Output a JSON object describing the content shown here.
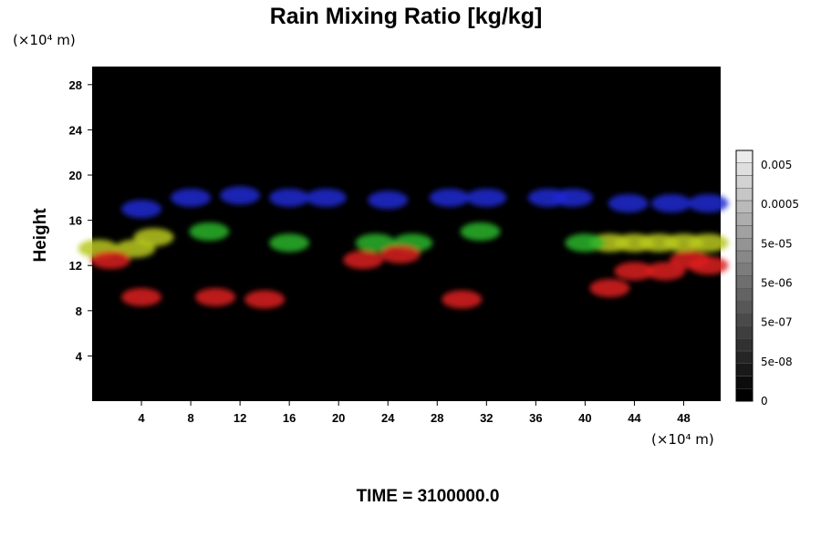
{
  "chart_data": {
    "type": "heatmap",
    "title": "Rain Mixing Ratio [kg/kg]",
    "ylabel": "Height",
    "y_unit": "(×10⁴ m)",
    "x_unit": "(×10⁴ m)",
    "xlim": [
      0,
      51
    ],
    "ylim": [
      0,
      29.6
    ],
    "x_ticks": [
      4,
      8,
      12,
      16,
      20,
      24,
      28,
      32,
      36,
      40,
      44,
      48
    ],
    "x_tick_labels": [
      "4",
      "8",
      "12",
      "16",
      "20",
      "24",
      "28",
      "32",
      "36",
      "40",
      "44",
      "48"
    ],
    "y_ticks": [
      4,
      8,
      12,
      16,
      20,
      24,
      28
    ],
    "y_tick_labels": [
      "4",
      "8",
      "12",
      "16",
      "20",
      "24",
      "28"
    ],
    "background_color": "#000000",
    "colorbar": {
      "labels": [
        "0",
        "5e-08",
        "5e-07",
        "5e-06",
        "5e-05",
        "0.0005",
        "0.005"
      ],
      "levels": 20,
      "colors": [
        "#000000",
        "#ffffff"
      ]
    },
    "regions": [
      {
        "color": "#1e28d2",
        "x": [
          4.0,
          8.0,
          12.0,
          16.0,
          19.0,
          24.0,
          29.0,
          32.0,
          37.0,
          39.0,
          43.5,
          47.0,
          50.0
        ],
        "y": [
          17.0,
          18.0,
          18.2,
          18.0,
          18.0,
          17.8,
          18.0,
          18.0,
          18.0,
          18.0,
          17.5,
          17.5,
          17.5
        ]
      },
      {
        "color": "#b9c81e",
        "x": [
          0.5,
          3.5,
          5.0,
          42.0,
          44.0,
          46.0,
          48.0,
          50.0
        ],
        "y": [
          13.5,
          13.5,
          14.5,
          14.0,
          14.0,
          14.0,
          14.0,
          14.0
        ]
      },
      {
        "color": "#28b428",
        "x": [
          9.5,
          16.0,
          23.0,
          26.0,
          31.5,
          40.0
        ],
        "y": [
          15.0,
          14.0,
          14.0,
          14.0,
          15.0,
          14.0
        ]
      },
      {
        "color": "#dc1e1e",
        "x": [
          1.5,
          4.0,
          10.0,
          14.0,
          22.0,
          25.0,
          30.0,
          42.0,
          44.0,
          46.5,
          48.5,
          50.0
        ],
        "y": [
          12.5,
          9.2,
          9.2,
          9.0,
          12.5,
          13.0,
          9.0,
          10.0,
          11.5,
          11.5,
          12.5,
          12.0
        ]
      }
    ]
  },
  "time_label": "TIME = 3100000.0"
}
